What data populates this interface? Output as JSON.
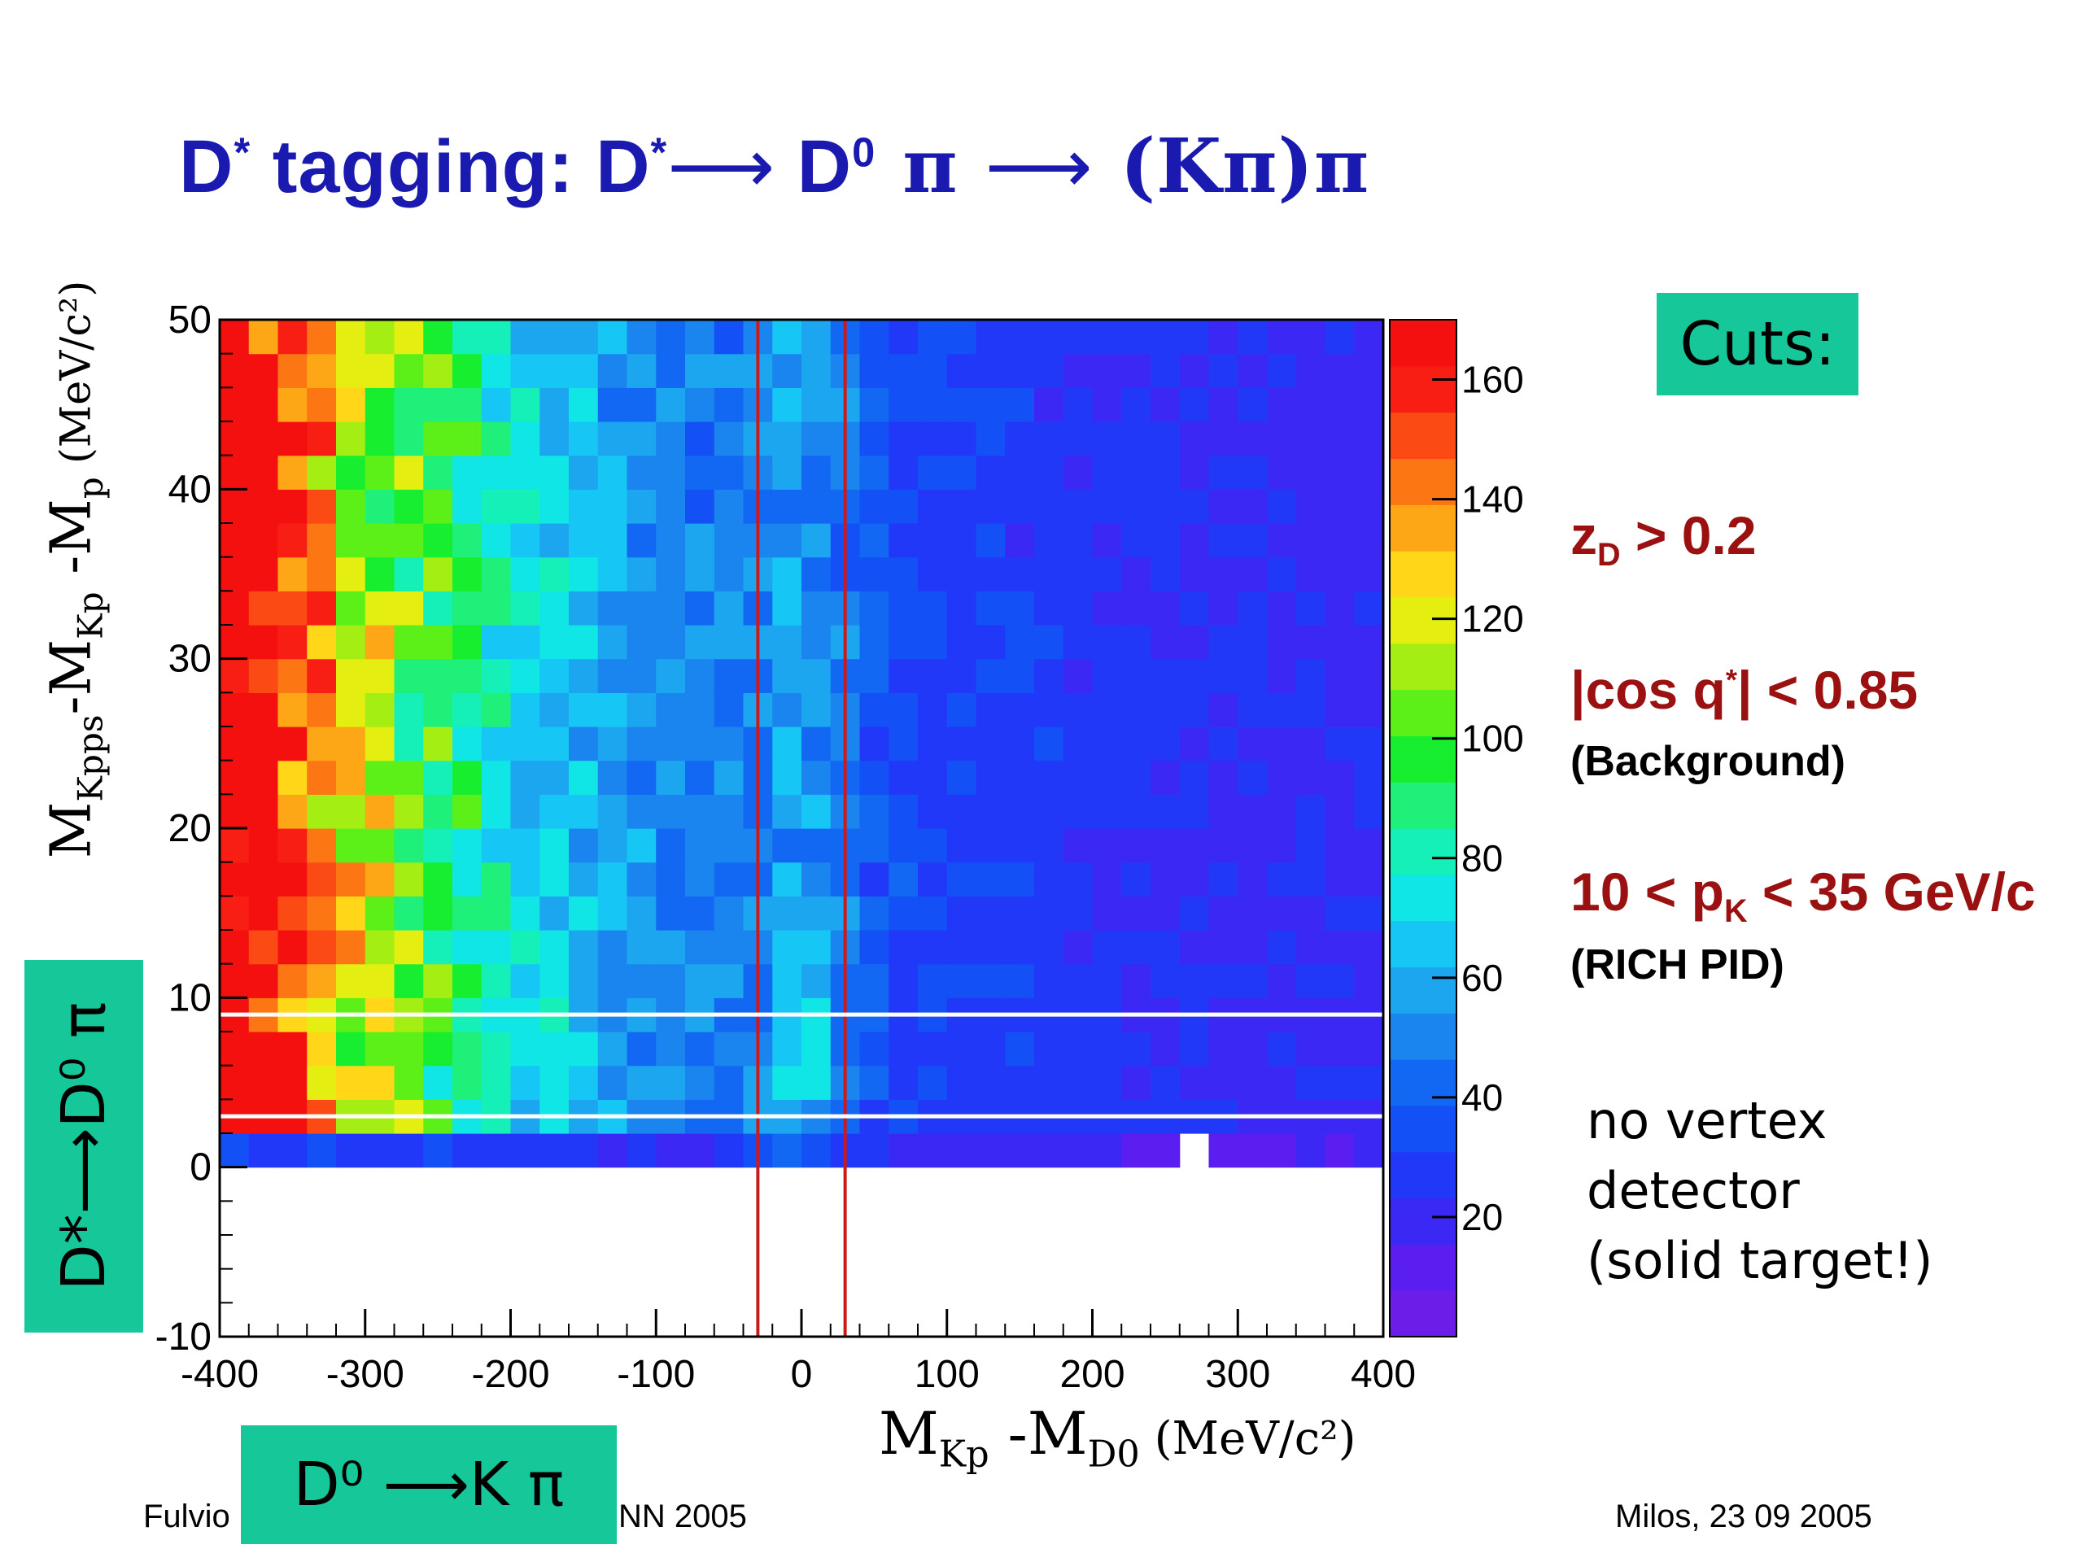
{
  "slide": {
    "title_parts": {
      "t1": "D",
      "t1sup": "*",
      "t2": " tagging: D",
      "t2sup": "*",
      "arrow": "⟶",
      "t3": " D",
      "t3sup": "0",
      "t4": " π  ",
      "t5": " (Kπ)π"
    },
    "cuts_box": "Cuts:",
    "cuts": [
      {
        "main": "z",
        "sub": "D",
        "rest": " > 0.2"
      },
      {
        "main": "|cos q",
        "sup": "*",
        "rest": "| < 0.85",
        "note": "(Background)"
      },
      {
        "main": "10 < p",
        "sub": "K",
        "rest": " < 35 GeV/c",
        "note": "(RICH PID)"
      }
    ],
    "no_vertex": [
      "no vertex",
      "detector",
      "(solid target!)"
    ],
    "vertical_box": "D*⟶D⁰ π",
    "horizontal_box": "D⁰ ⟶K π",
    "footer_left_a": "Fulvio",
    "footer_left_b": "NN 2005",
    "footer_right": "Milos,   23 09 2005"
  },
  "chart_data": {
    "type": "heatmap",
    "title": "",
    "xlabel_main": "M",
    "xlabel_sub1": "Kp",
    "xlabel_mid": " -M",
    "xlabel_sub2": "D0",
    "xlabel_unit": " (MeV/c²)",
    "ylabel_a": "M",
    "ylabel_sub1": "Kpps",
    "ylabel_b": "-M",
    "ylabel_sub2": "Kp",
    "ylabel_c": " -M",
    "ylabel_sub3": "p",
    "ylabel_unit": " (MeV/c²)",
    "xlim": [
      -400,
      400
    ],
    "ylim": [
      -10,
      50
    ],
    "xticks": [
      "-400",
      "-300",
      "-200",
      "-100",
      "0",
      "100",
      "200",
      "300",
      "400"
    ],
    "yticks": [
      "-10",
      "0",
      "10",
      "20",
      "30",
      "40",
      "50"
    ],
    "bin_x": {
      "start": -400,
      "width": 20,
      "count": 40
    },
    "bin_y": {
      "start": 0,
      "width": 2,
      "count": 25
    },
    "zlim": [
      0,
      170
    ],
    "zticks": [
      "20",
      "40",
      "60",
      "80",
      "100",
      "120",
      "140",
      "160"
    ],
    "palette": [
      "#6a1ee8",
      "#5a1ff0",
      "#3c28f5",
      "#2238f8",
      "#1350f5",
      "#1268f2",
      "#1a84ef",
      "#1ca6f0",
      "#16c6f4",
      "#10e6e6",
      "#14f0b8",
      "#1ef07a",
      "#18ee30",
      "#5cf018",
      "#a4ee14",
      "#e4ee10",
      "#ffd618",
      "#fda616",
      "#fd7614",
      "#fb4a14",
      "#f81e14",
      "#f51010"
    ],
    "cut_lines": {
      "x": [
        -30,
        30
      ],
      "y": [
        3,
        9
      ]
    },
    "cut_line_colors": {
      "x": "#cc1a1a",
      "y": "#ffffff"
    },
    "grid": false,
    "legend": "colorbar-right"
  }
}
